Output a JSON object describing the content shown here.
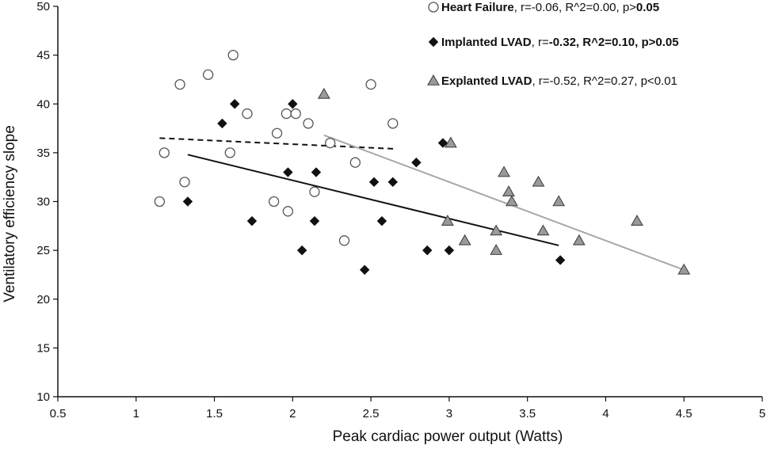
{
  "chart_data": {
    "type": "scatter",
    "title": "",
    "xlabel": "Peak cardiac power output (Watts)",
    "ylabel": "Ventilatory efficiency slope",
    "xlim": [
      0.5,
      5
    ],
    "ylim": [
      10,
      50
    ],
    "xticks": [
      "0.5",
      "1",
      "1.5",
      "2",
      "2.5",
      "3",
      "3.5",
      "4",
      "4.5",
      "5"
    ],
    "yticks": [
      "10",
      "15",
      "20",
      "25",
      "30",
      "35",
      "40",
      "45",
      "50"
    ],
    "grid": false,
    "legend_position": "top-right",
    "series": [
      {
        "name": "Heart Failure",
        "stats_prefix": ", r=-0.06, R^2=0.00, p>",
        "stats_bold": "0.05",
        "marker": "circle-open",
        "color": "#ffffff",
        "stroke": "#555555",
        "x": [
          1.15,
          1.18,
          1.28,
          1.31,
          1.46,
          1.6,
          1.62,
          1.71,
          1.9,
          1.88,
          1.96,
          1.97,
          2.02,
          2.1,
          2.14,
          2.24,
          2.33,
          2.4,
          2.5,
          2.64
        ],
        "y": [
          30,
          35,
          42,
          32,
          43,
          35,
          45,
          39,
          37,
          30,
          39,
          29,
          39,
          38,
          31,
          36,
          26,
          34,
          42,
          38
        ],
        "fit": {
          "x": [
            1.15,
            2.65
          ],
          "y": [
            36.5,
            35.4
          ],
          "style": "dashed",
          "color": "#111111"
        }
      },
      {
        "name": "Implanted LVAD",
        "stats_prefix": ", r=",
        "stats_bold": "-0.32, R^2=0.10, p>0.05",
        "marker": "diamond",
        "color": "#111111",
        "stroke": "#111111",
        "x": [
          1.33,
          1.55,
          1.63,
          1.74,
          1.97,
          2.0,
          2.06,
          2.14,
          2.15,
          2.46,
          2.52,
          2.57,
          2.64,
          2.79,
          2.86,
          2.96,
          3.0,
          3.71
        ],
        "y": [
          30,
          38,
          40,
          28,
          33,
          40,
          25,
          28,
          33,
          23,
          32,
          28,
          32,
          34,
          25,
          36,
          25,
          24
        ],
        "fit": {
          "x": [
            1.33,
            3.7
          ],
          "y": [
            34.8,
            25.5
          ],
          "style": "solid",
          "color": "#111111"
        }
      },
      {
        "name": "Explanted LVAD",
        "stats_prefix": ", r=-0.52, R^2=0.27, p<0.01",
        "stats_bold": "",
        "marker": "triangle",
        "color": "#9a9a9a",
        "stroke": "#444444",
        "x": [
          2.2,
          2.99,
          3.01,
          3.1,
          3.3,
          3.3,
          3.35,
          3.38,
          3.4,
          3.57,
          3.6,
          3.7,
          3.83,
          4.2,
          4.5
        ],
        "y": [
          41,
          28,
          36,
          26,
          27,
          25,
          33,
          31,
          30,
          32,
          27,
          30,
          26,
          28,
          23
        ],
        "fit": {
          "x": [
            2.2,
            4.5
          ],
          "y": [
            36.8,
            23.0
          ],
          "style": "solid",
          "color": "#a8a8a8"
        }
      }
    ]
  }
}
